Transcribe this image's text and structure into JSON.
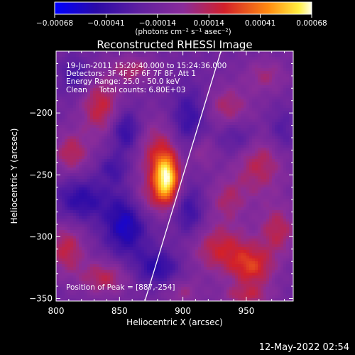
{
  "chart_data": {
    "type": "heatmap",
    "title": "Reconstructed RHESSI Image",
    "xlabel": "Heliocentric X (arcsec)",
    "ylabel": "Heliocentric Y (arcsec)",
    "xlim": [
      800,
      987
    ],
    "ylim": [
      -352,
      -150
    ],
    "x_ticks": [
      800,
      850,
      900,
      950
    ],
    "y_ticks": [
      -200,
      -250,
      -300,
      -350
    ],
    "colorbar": {
      "min": -0.00068,
      "max": 0.00068,
      "ticks": [
        "-0.00068",
        "-0.00041",
        "-0.00014",
        "0.00014",
        "0.00041",
        "0.00068"
      ],
      "label": "(photons cm⁻² s⁻¹ asec⁻²)"
    },
    "annotations": {
      "time_range": "19-Jun-2011 15:20:40.000 to 15:24:36.000",
      "detectors": "Detectors: 3F 4F 5F 6F 7F 8F, Att 1",
      "energy_range": "Energy Range: 25.0 - 50.0 keV",
      "algorithm": "Clean     Total counts: 6.80E+03",
      "peak": "Position of Peak = [887,-254]"
    },
    "peak": {
      "x": 887,
      "y": -254,
      "value": 0.00068
    },
    "limb_line": {
      "x_start": 870,
      "y_start": -352,
      "x_end": 930,
      "y_end": -150
    },
    "blobs": [
      {
        "x": 887,
        "y": -254,
        "sx": 7,
        "sy": 14,
        "a": 0.00068
      },
      {
        "x": 880,
        "y": -232,
        "sx": 12,
        "sy": 18,
        "a": 0.00026
      },
      {
        "x": 870,
        "y": -270,
        "sx": 10,
        "sy": 12,
        "a": 0.0002
      },
      {
        "x": 835,
        "y": -195,
        "sx": 11,
        "sy": 16,
        "a": 0.0003
      },
      {
        "x": 812,
        "y": -232,
        "sx": 10,
        "sy": 12,
        "a": 0.00026
      },
      {
        "x": 808,
        "y": -310,
        "sx": 10,
        "sy": 14,
        "a": 0.00028
      },
      {
        "x": 838,
        "y": -333,
        "sx": 14,
        "sy": 10,
        "a": 0.00026
      },
      {
        "x": 860,
        "y": -165,
        "sx": 12,
        "sy": 8,
        "a": 0.00022
      },
      {
        "x": 935,
        "y": -195,
        "sx": 12,
        "sy": 12,
        "a": 0.00022
      },
      {
        "x": 965,
        "y": -170,
        "sx": 12,
        "sy": 10,
        "a": 0.00018
      },
      {
        "x": 960,
        "y": -240,
        "sx": 14,
        "sy": 20,
        "a": 0.00026
      },
      {
        "x": 935,
        "y": -270,
        "sx": 10,
        "sy": 12,
        "a": 0.0002
      },
      {
        "x": 930,
        "y": -310,
        "sx": 16,
        "sy": 14,
        "a": 0.0003
      },
      {
        "x": 955,
        "y": -325,
        "sx": 12,
        "sy": 12,
        "a": 0.00034
      },
      {
        "x": 975,
        "y": -295,
        "sx": 10,
        "sy": 14,
        "a": 0.00026
      },
      {
        "x": 950,
        "y": -348,
        "sx": 14,
        "sy": 6,
        "a": 0.00022
      },
      {
        "x": 900,
        "y": -345,
        "sx": 10,
        "sy": 8,
        "a": 0.00016
      },
      {
        "x": 915,
        "y": -230,
        "sx": 8,
        "sy": 10,
        "a": 0.00018
      },
      {
        "x": 855,
        "y": -215,
        "sx": 8,
        "sy": 12,
        "a": -0.0003
      },
      {
        "x": 855,
        "y": -290,
        "sx": 12,
        "sy": 18,
        "a": -0.0004
      },
      {
        "x": 905,
        "y": -205,
        "sx": 10,
        "sy": 18,
        "a": -0.00026
      },
      {
        "x": 820,
        "y": -270,
        "sx": 14,
        "sy": 12,
        "a": -0.0003
      },
      {
        "x": 880,
        "y": -325,
        "sx": 12,
        "sy": 10,
        "a": -0.0003
      },
      {
        "x": 905,
        "y": -280,
        "sx": 8,
        "sy": 14,
        "a": -0.00024
      },
      {
        "x": 945,
        "y": -220,
        "sx": 12,
        "sy": 10,
        "a": -0.0002
      },
      {
        "x": 978,
        "y": -215,
        "sx": 8,
        "sy": 12,
        "a": -0.00018
      },
      {
        "x": 815,
        "y": -170,
        "sx": 8,
        "sy": 10,
        "a": -0.00022
      },
      {
        "x": 845,
        "y": -245,
        "sx": 8,
        "sy": 8,
        "a": -0.0002
      }
    ]
  },
  "footer": {
    "timestamp": "12-May-2022 02:54"
  }
}
